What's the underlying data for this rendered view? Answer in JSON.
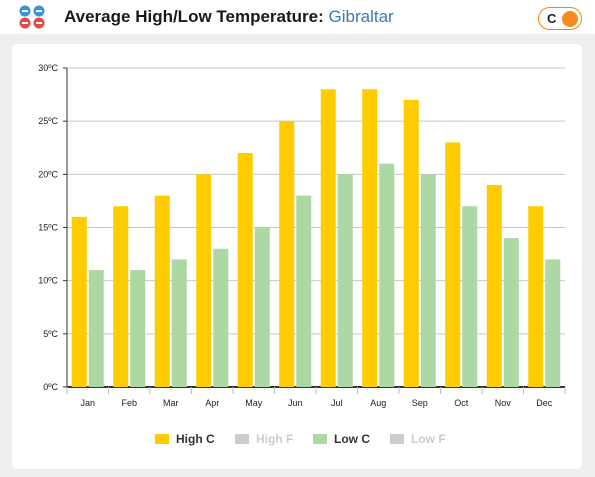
{
  "header": {
    "title_prefix": "Average High/Low Temperature: ",
    "city": "Gibraltar",
    "unit_toggle_label": "C"
  },
  "colors": {
    "high_c": "#ffcc00",
    "low_c": "#add8a4",
    "disabled": "#cccccc",
    "accent": "#f58a1f",
    "link": "#3a7ab0"
  },
  "icons": {
    "app": "weather-icon",
    "toggle": "toggle-knob-icon"
  },
  "chart_data": {
    "type": "bar",
    "categories": [
      "Jan",
      "Feb",
      "Mar",
      "Apr",
      "May",
      "Jun",
      "Jul",
      "Aug",
      "Sep",
      "Oct",
      "Nov",
      "Dec"
    ],
    "series": [
      {
        "name": "High C",
        "values": [
          16,
          17,
          18,
          20,
          22,
          25,
          28,
          28,
          27,
          23,
          19,
          17
        ],
        "color": "#ffcc00"
      },
      {
        "name": "Low C",
        "values": [
          11,
          11,
          12,
          13,
          15,
          18,
          20,
          21,
          20,
          17,
          14,
          12
        ],
        "color": "#add8a4"
      }
    ],
    "ylim": [
      0,
      30
    ],
    "yticks": [
      "0ºC",
      "5ºC",
      "10ºC",
      "15ºC",
      "20ºC",
      "25ºC",
      "30ºC"
    ],
    "grid": true,
    "legend_position": "bottom",
    "legend": [
      {
        "label": "High C",
        "active": true,
        "color": "#ffcc00"
      },
      {
        "label": "High F",
        "active": false,
        "color": "#cccccc"
      },
      {
        "label": "Low C",
        "active": true,
        "color": "#add8a4"
      },
      {
        "label": "Low F",
        "active": false,
        "color": "#cccccc"
      }
    ]
  }
}
